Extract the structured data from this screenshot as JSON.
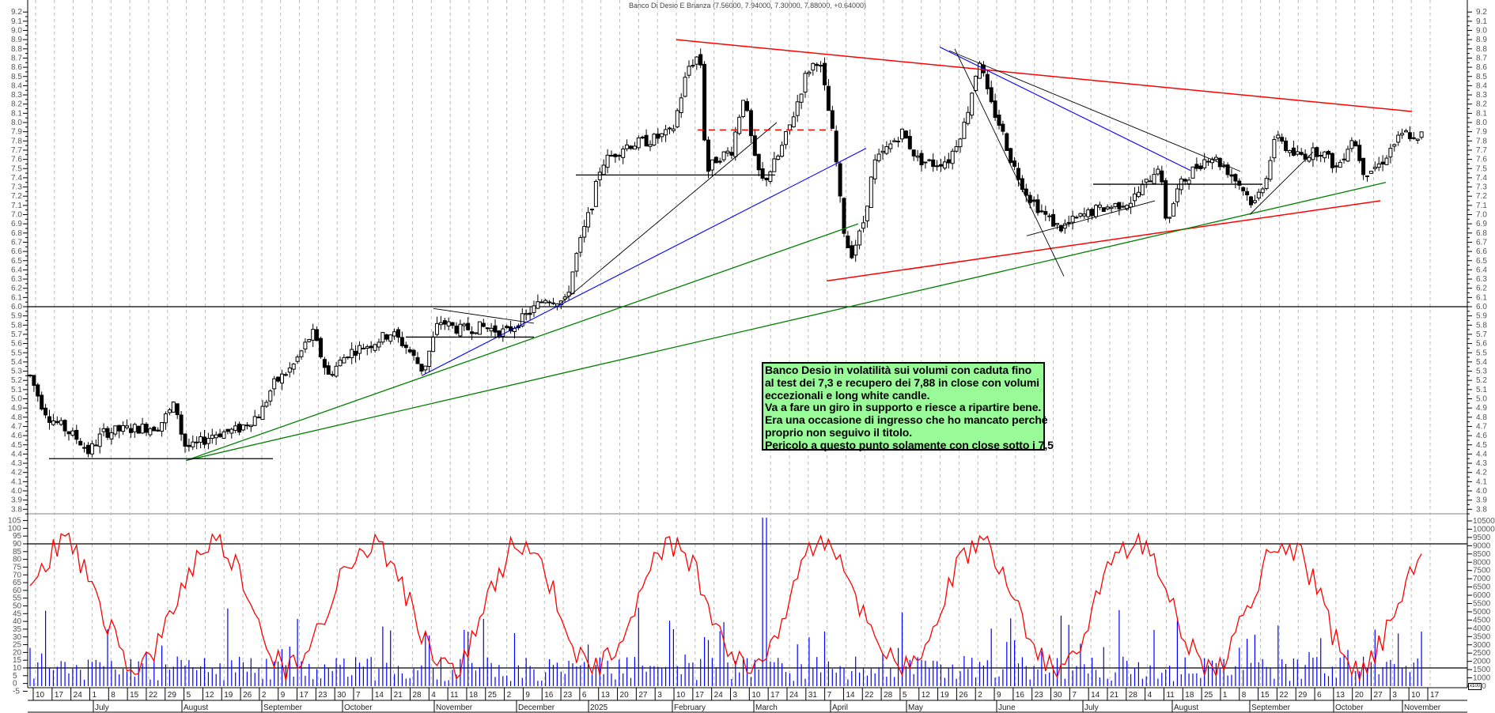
{
  "title": "Banco Di Desio E Brianza (7.56000, 7.94000, 7.30000, 7.88000, +0.64000)",
  "annotation": {
    "lines": [
      "Banco Desio in volatilità sui volumi con caduta fino",
      "al test dei 7,3 e recupero dei 7,88 in close con volumi",
      "eccezionali e long white candle.",
      "Va a fare un giro in supporto e riesce a ripartire bene.",
      "Era una occasione di ingresso che ho mancato perchè",
      "proprio non seguivo il titolo.",
      "Pericolo a questo punto solamente con close sotto i 7,5"
    ],
    "bg_color": "#98fb98"
  },
  "volume_unit": "x100",
  "colors": {
    "price_line": "#000000",
    "oscillator": "#ff0000",
    "volume": "#0000ff",
    "trend_red": "#ff0000",
    "trend_green": "#008000",
    "trend_blue": "#0000ff",
    "grid": "#bbbbbb"
  },
  "chart_data": {
    "type": "candlestick",
    "title": "Banco Di Desio E Brianza (7.56000, 7.94000, 7.30000, 7.88000, +0.64000)",
    "last_bar": {
      "open": 7.56,
      "high": 7.94,
      "low": 7.3,
      "close": 7.88,
      "change": 0.64
    },
    "price_axis": {
      "min": 3.8,
      "max": 9.2,
      "step": 0.1,
      "ticks": [
        "9.2",
        "9.1",
        "9.0",
        "8.9",
        "8.8",
        "8.7",
        "8.6",
        "8.5",
        "8.4",
        "8.3",
        "8.2",
        "8.1",
        "8.0",
        "7.9",
        "7.8",
        "7.7",
        "7.6",
        "7.5",
        "7.4",
        "7.3",
        "7.2",
        "7.1",
        "7.0",
        "6.9",
        "6.8",
        "6.7",
        "6.6",
        "6.5",
        "6.4",
        "6.3",
        "6.2",
        "6.1",
        "6.0",
        "5.9",
        "5.8",
        "5.7",
        "5.6",
        "5.5",
        "5.4",
        "5.3",
        "5.2",
        "5.1",
        "5.0",
        "4.9",
        "4.8",
        "4.7",
        "4.6",
        "4.5",
        "4.4",
        "4.3",
        "4.2",
        "4.1",
        "4.0",
        "3.9",
        "3.8"
      ]
    },
    "oscillator_axis": {
      "min": -5,
      "max": 105,
      "ticks": [
        "105",
        "100",
        "95",
        "90",
        "85",
        "80",
        "75",
        "70",
        "65",
        "60",
        "55",
        "50",
        "45",
        "40",
        "35",
        "30",
        "25",
        "20",
        "15",
        "10",
        "5",
        "0",
        "-5"
      ],
      "levels": [
        90,
        10
      ]
    },
    "volume_axis": {
      "unit": "x100",
      "ticks": [
        "10500",
        "10000",
        "9500",
        "9000",
        "8500",
        "8000",
        "7500",
        "7000",
        "6500",
        "6000",
        "5500",
        "5000",
        "4500",
        "4000",
        "3500",
        "3000",
        "2500",
        "2000",
        "1500",
        "1000",
        "500"
      ]
    },
    "x_day_labels": [
      "10",
      "17",
      "24",
      "1",
      "8",
      "15",
      "22",
      "29",
      "5",
      "12",
      "19",
      "26",
      "2",
      "9",
      "17",
      "23",
      "30",
      "7",
      "14",
      "21",
      "28",
      "4",
      "11",
      "18",
      "25",
      "2",
      "9",
      "16",
      "23",
      "6",
      "13",
      "20",
      "27",
      "3",
      "10",
      "17",
      "24",
      "3",
      "10",
      "17",
      "24",
      "31",
      "7",
      "14",
      "22",
      "28",
      "5",
      "12",
      "19",
      "26",
      "2",
      "9",
      "16",
      "23",
      "30",
      "7",
      "14",
      "21",
      "28",
      "4",
      "11",
      "18",
      "25",
      "1",
      "8",
      "15",
      "22",
      "29",
      "6",
      "13",
      "20",
      "27",
      "3",
      "10",
      "17"
    ],
    "x_month_labels": [
      "July",
      "August",
      "September",
      "October",
      "November",
      "December",
      "2025",
      "February",
      "March",
      "April",
      "May",
      "June",
      "July",
      "August",
      "September",
      "October",
      "November"
    ],
    "horizontal_lines": [
      {
        "price": 6.0,
        "color": "#000000",
        "span": "full"
      },
      {
        "price": 4.35,
        "color": "#000000",
        "from": "Jun 2024",
        "to": "Sep 2024"
      },
      {
        "price": 5.67,
        "color": "#000000",
        "from": "Oct 2024",
        "to": "Dec 2024"
      },
      {
        "price": 7.43,
        "color": "#000000",
        "from": "Dec 2024",
        "to": "Mar 2025"
      },
      {
        "price": 7.92,
        "color": "#ff0000",
        "style": "dashed",
        "from": "Feb 2025",
        "to": "Mar 2025"
      },
      {
        "price": 7.33,
        "color": "#000000",
        "from": "Jul 2025",
        "to": "Sep 2025"
      }
    ],
    "key_prices": {
      "low_2024": 4.2,
      "high_feb_2025": 8.85,
      "high_mar_2025": 8.72,
      "low_apr_2025": 6.3,
      "high_may_2025": 8.8,
      "low_jun_2025": 6.75,
      "low_aug_2025": 6.8,
      "last_close": 7.88
    },
    "trendlines": [
      {
        "color": "red",
        "desc": "descending resistance from Feb 2025 high 8.9 to Nov 2025 8.1"
      },
      {
        "color": "red",
        "desc": "rising support from Apr 2025 low 6.3 to Oct 2025 7.15"
      },
      {
        "color": "green",
        "desc": "long-term rising support from Aug 2024 4.33 to Oct 2025 7.35"
      },
      {
        "color": "green",
        "desc": "rising support from Aug 2024 4.33 to Apr 2025 6.9"
      },
      {
        "color": "blue",
        "desc": "support from Nov 2024 5.25 to Apr 2025 7.7"
      },
      {
        "color": "blue",
        "desc": "descending from May 2025 8.8 to Aug 2025 7.5"
      }
    ]
  }
}
